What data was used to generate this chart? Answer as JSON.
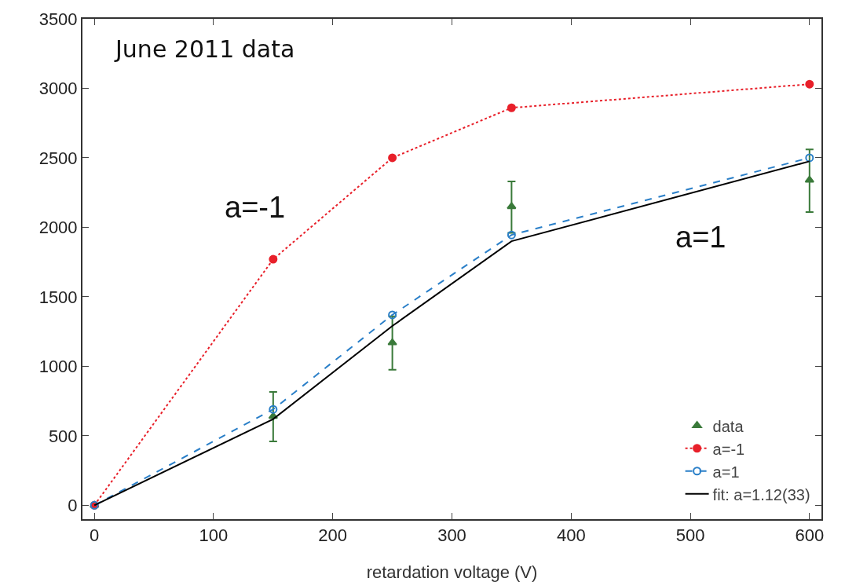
{
  "chart_data": {
    "type": "line",
    "xlabel": "retardation voltage (V)",
    "x": [
      0,
      150,
      250,
      350,
      600
    ],
    "series": [
      {
        "name": "data",
        "type": "scatter",
        "color": "#3a7a3a",
        "marker": "triangle",
        "values": [
          0,
          640,
          1170,
          2150,
          2340
        ],
        "errors": [
          null,
          [
            460,
            815
          ],
          [
            975,
            1360
          ],
          [
            1960,
            2330
          ],
          [
            2110,
            2560
          ]
        ]
      },
      {
        "name": "a=-1",
        "color": "#e8202a",
        "marker": "circle",
        "line_style": "dotted",
        "values": [
          0,
          1770,
          2500,
          2860,
          3030
        ]
      },
      {
        "name": "a=1",
        "color": "#2a7fc8",
        "marker": "circle-open",
        "line_style": "dashed",
        "values": [
          0,
          690,
          1370,
          1945,
          2500
        ]
      },
      {
        "name": "fit: a=1.12(33)",
        "color": "#000000",
        "marker": "none",
        "line_style": "solid",
        "values": [
          0,
          620,
          1290,
          1900,
          2475
        ]
      }
    ],
    "xlim": [
      -10,
      610
    ],
    "xticks": [
      0,
      100,
      200,
      300,
      400,
      500,
      600
    ],
    "ylim": [
      -100,
      3500
    ],
    "yticks": [
      0,
      500,
      1000,
      1500,
      2000,
      2500,
      3000,
      3500
    ],
    "grid": false,
    "legend": "bottom right",
    "annotations": [
      "June 2011 data",
      "a=-1",
      "a=1"
    ]
  }
}
